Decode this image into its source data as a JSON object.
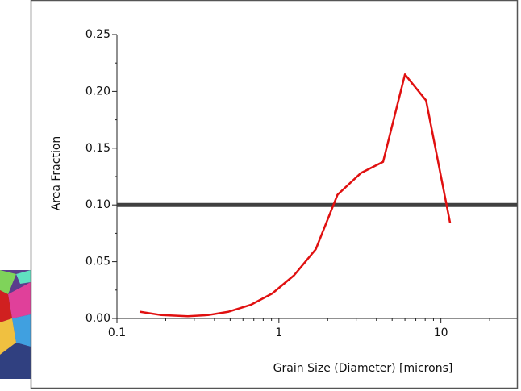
{
  "chart_data": {
    "type": "line",
    "xlabel": "Grain Size (Diameter) [microns]",
    "ylabel": "Area Fraction",
    "x": [
      0.138,
      0.188,
      0.274,
      0.365,
      0.49,
      0.67,
      0.91,
      1.24,
      1.69,
      2.3,
      3.2,
      4.4,
      6.0,
      8.1,
      11.4
    ],
    "series": [
      {
        "color": "#e01010",
        "values": [
          0.006,
          0.003,
          0.002,
          0.003,
          0.006,
          0.012,
          0.022,
          0.038,
          0.061,
          0.109,
          0.128,
          0.138,
          0.215,
          0.192,
          0.084
        ]
      }
    ],
    "xscale": "log",
    "xlim": [
      0.1,
      29.5
    ],
    "xticks": [
      0.1,
      1,
      10
    ],
    "xminorticks": [
      0.2,
      0.3,
      0.4,
      0.5,
      0.6,
      0.7,
      0.8,
      0.9,
      2,
      3,
      4,
      5,
      6,
      7,
      8,
      9,
      20
    ],
    "ylim": [
      0,
      0.25
    ],
    "yticks": [
      {
        "value": 0,
        "label": "0.00"
      },
      {
        "value": 0.05,
        "label": "0.05"
      },
      {
        "value": 0.1,
        "label": "0.10"
      },
      0.15,
      {
        "value": 0.2,
        "label": "0.20"
      },
      0.25
    ],
    "yminorticks": [
      0.025,
      0.075,
      0.125,
      0.175,
      0.225
    ],
    "hline": {
      "value": 0.1,
      "color": "#404040"
    }
  }
}
